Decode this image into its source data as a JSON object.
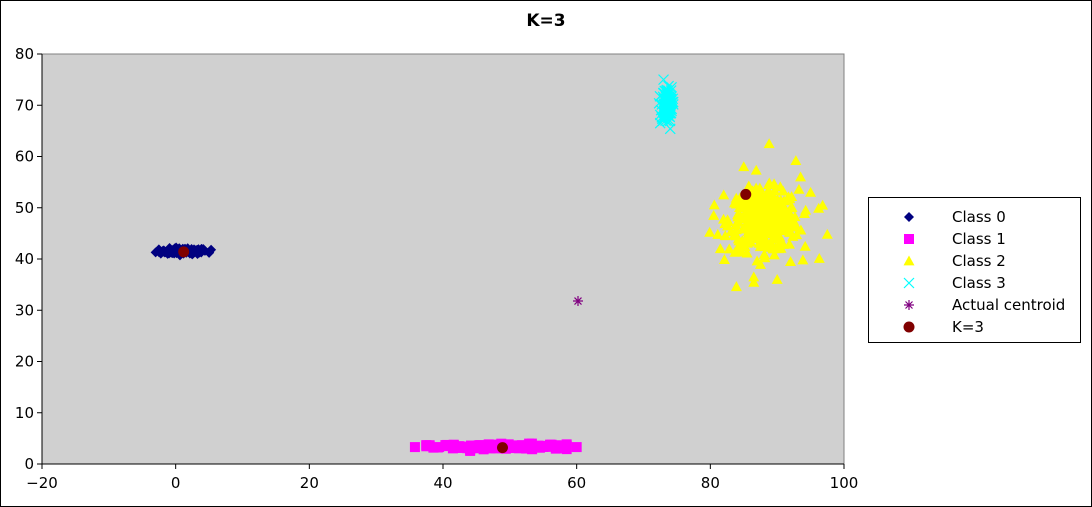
{
  "chart_data": {
    "type": "scatter",
    "title": "K=3",
    "xlabel": "",
    "ylabel": "",
    "xlim": [
      -20,
      100
    ],
    "ylim": [
      0,
      80
    ],
    "x_ticks": [
      -20,
      0,
      20,
      40,
      60,
      80,
      100
    ],
    "y_ticks": [
      0,
      10,
      20,
      30,
      40,
      50,
      60,
      70,
      80
    ],
    "plot_background": "#d0d0d0",
    "grid": false,
    "legend_position": "right",
    "series": [
      {
        "name": "Class 0",
        "color": "#000080",
        "marker": "diamond",
        "cluster": {
          "cx": 1.2,
          "cy": 41.5,
          "sx": 1.8,
          "sy": 0.3,
          "xmin": -3.0,
          "xmax": 5.5,
          "n": 110
        },
        "points": [
          [
            -3.0,
            41.3
          ],
          [
            -2.5,
            41.6
          ],
          [
            5.3,
            41.8
          ],
          [
            5.0,
            41.2
          ],
          [
            1.8,
            42.1
          ],
          [
            3.4,
            41.9
          ],
          [
            -1.2,
            41.0
          ],
          [
            0.5,
            41.4
          ]
        ]
      },
      {
        "name": "Class 1",
        "color": "#ff00ff",
        "marker": "square",
        "cluster": {
          "cx": 49,
          "cy": 3.4,
          "sx": 4.8,
          "sy": 0.25,
          "xmin": 37.5,
          "xmax": 58.5,
          "n": 170
        },
        "points": [
          [
            35.8,
            3.3
          ],
          [
            60.0,
            3.3
          ],
          [
            58.5,
            3.5
          ],
          [
            38.0,
            3.5
          ],
          [
            44.0,
            3.2
          ],
          [
            52.0,
            3.6
          ]
        ]
      },
      {
        "name": "Class 2",
        "color": "#ffff00",
        "marker": "triangle",
        "cluster": {
          "cx": 88,
          "cy": 47.5,
          "sx": 2.6,
          "sy": 3.0,
          "n": 380
        },
        "points": [
          [
            88.8,
            62.5
          ],
          [
            92.8,
            59.2
          ],
          [
            83.9,
            34.6
          ],
          [
            97.5,
            44.8
          ],
          [
            79.9,
            45.2
          ],
          [
            96.3,
            40.1
          ],
          [
            85.0,
            58.0
          ],
          [
            90.0,
            36.0
          ],
          [
            80.5,
            48.5
          ],
          [
            96.8,
            50.5
          ],
          [
            82.0,
            52.5
          ],
          [
            86.5,
            36.5
          ],
          [
            92.0,
            39.5
          ],
          [
            95.0,
            53.0
          ],
          [
            81.5,
            42.0
          ],
          [
            93.5,
            56.0
          ]
        ]
      },
      {
        "name": "Class 3",
        "color": "#00ffff",
        "marker": "x",
        "cluster": {
          "cx": 73.5,
          "cy": 70,
          "sx": 0.4,
          "sy": 1.6,
          "n": 120
        },
        "points": [
          [
            73.0,
            75.0
          ],
          [
            74.0,
            65.4
          ],
          [
            72.5,
            66.5
          ],
          [
            74.2,
            73.5
          ],
          [
            73.3,
            67.0
          ]
        ]
      },
      {
        "name": "Actual centroid",
        "color": "#800080",
        "marker": "asterisk",
        "points": [
          [
            60.2,
            31.8
          ]
        ]
      },
      {
        "name": "K=3",
        "color": "#800000",
        "marker": "circle",
        "points": [
          [
            1.2,
            41.4
          ],
          [
            48.9,
            3.2
          ],
          [
            85.3,
            52.6
          ]
        ]
      }
    ]
  }
}
